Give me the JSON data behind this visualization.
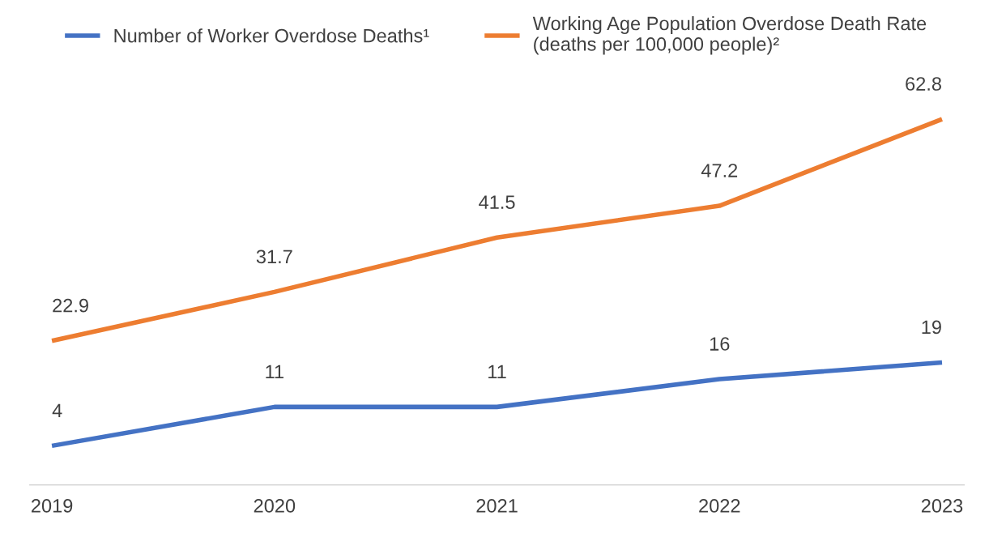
{
  "chart_data": {
    "type": "line",
    "categories": [
      "2019",
      "2020",
      "2021",
      "2022",
      "2023"
    ],
    "series": [
      {
        "name": "Number of Worker Overdose Deaths¹",
        "color": "#4472c4",
        "values": [
          4,
          11,
          11,
          16,
          19
        ]
      },
      {
        "name": "Working Age Population Overdose Death Rate\n(deaths per 100,000 people)²",
        "color": "#ed7d31",
        "values": [
          22.9,
          31.7,
          41.5,
          47.2,
          62.8
        ]
      }
    ],
    "tick_labels": "x",
    "data_labels": true,
    "legend": "top",
    "grid": false,
    "marker": "none",
    "line_style": "solid"
  }
}
